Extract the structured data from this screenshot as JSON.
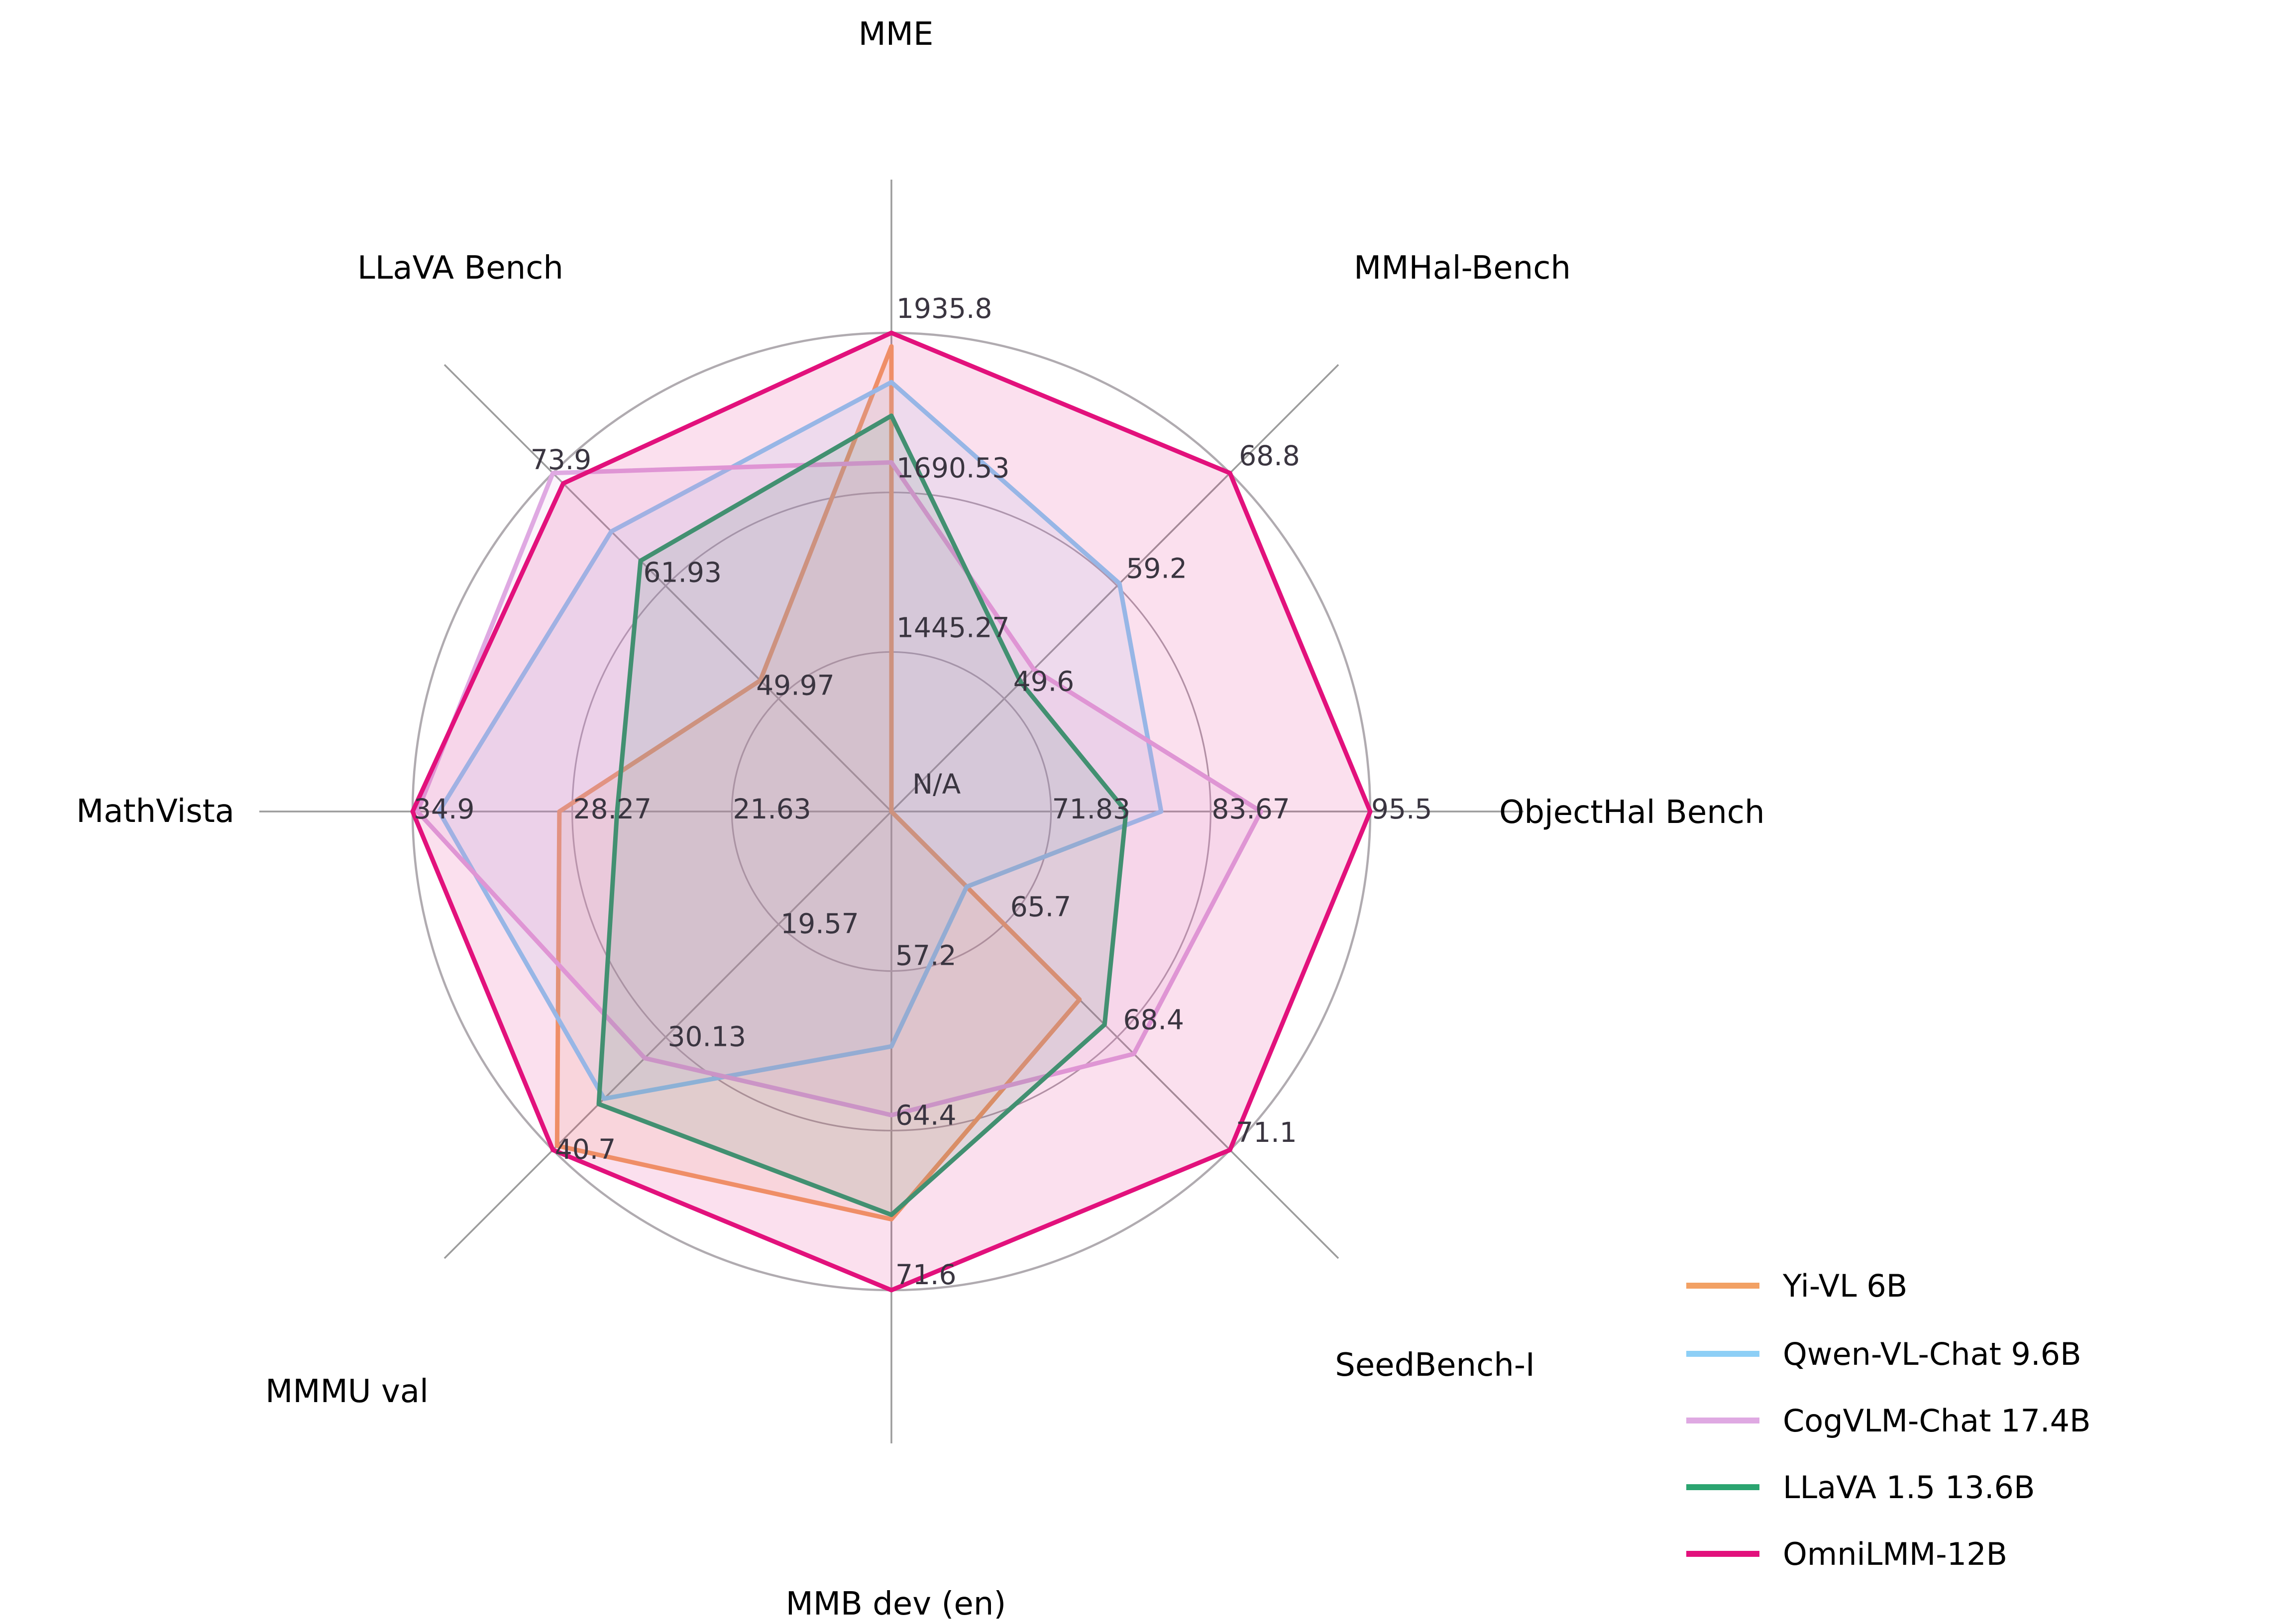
{
  "chart_data": {
    "type": "radar",
    "na_label": "N/A",
    "axes": [
      {
        "label": "MME",
        "min": 1200,
        "max": 1935.8,
        "ticks": [
          "1445.27",
          "1690.53",
          "1935.8"
        ]
      },
      {
        "label": "MMHal-Bench",
        "min": 40,
        "max": 68.8,
        "ticks": [
          "49.6",
          "59.2",
          "68.8"
        ]
      },
      {
        "label": "ObjectHal Bench",
        "min": 60,
        "max": 95.5,
        "ticks": [
          "71.83",
          "83.67",
          "95.5"
        ]
      },
      {
        "label": "SeedBench-I",
        "min": 63,
        "max": 71.1,
        "ticks": [
          "65.7",
          "68.4",
          "71.1"
        ]
      },
      {
        "label": "MMB dev (en)",
        "min": 50,
        "max": 71.6,
        "ticks": [
          "57.2",
          "64.4",
          "71.6"
        ]
      },
      {
        "label": "MMMU val",
        "min": 9,
        "max": 40.7,
        "ticks": [
          "19.57",
          "30.13",
          "40.7"
        ]
      },
      {
        "label": "MathVista",
        "min": 15,
        "max": 34.9,
        "ticks": [
          "21.63",
          "28.27",
          "34.9"
        ]
      },
      {
        "label": "LLaVA Bench",
        "min": 38,
        "max": 73.9,
        "ticks": [
          "49.97",
          "61.93",
          "73.9"
        ]
      }
    ],
    "series": [
      {
        "name": "Yi-VL 6B",
        "color": "#F2A164",
        "values": [
          1915.1,
          null,
          null,
          67.5,
          68.4,
          40.3,
          28.8,
          51.9
        ]
      },
      {
        "name": "Qwen-VL-Chat 9.6B",
        "color": "#8DCFF6",
        "values": [
          1860.0,
          59.4,
          80.0,
          64.8,
          60.6,
          35.9,
          33.8,
          67.7
        ]
      },
      {
        "name": "CogVLM-Chat 17.4B",
        "color": "#DFA9E2",
        "values": [
          1736.6,
          52.1,
          87.4,
          68.8,
          63.7,
          32.1,
          34.7,
          73.9
        ]
      },
      {
        "name": "LLaVA 1.5 13.6B",
        "color": "#2BA470",
        "values": [
          1808.4,
          51.0,
          77.4,
          68.1,
          68.2,
          36.4,
          26.4,
          64.6
        ]
      },
      {
        "name": "OmniLMM-12B",
        "color": "#E2117C",
        "values": [
          1935.8,
          68.8,
          95.5,
          71.1,
          71.6,
          40.7,
          34.9,
          72.8
        ]
      }
    ],
    "grid": {
      "ring_fractions": [
        0.33333,
        0.66667,
        1.0
      ],
      "rings": 3,
      "spokes": 8
    },
    "legend_position": "bottom-right"
  }
}
